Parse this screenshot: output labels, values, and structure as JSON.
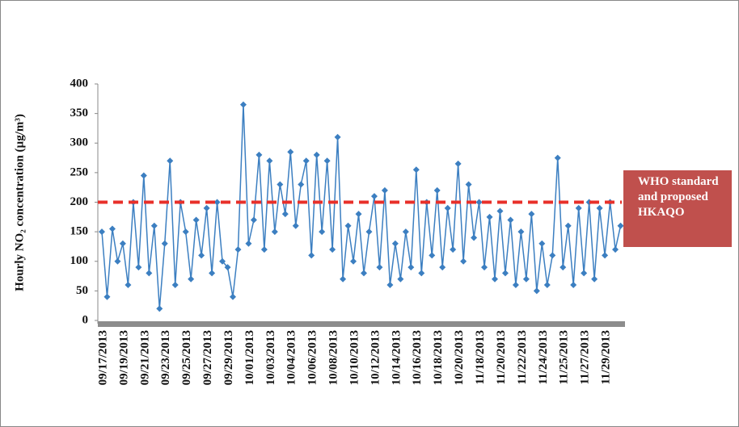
{
  "chart_data": {
    "type": "line",
    "y_label": "Hourly NO₂ concentration (µg/m³)",
    "categories": [
      "09/17/2013",
      null,
      null,
      null,
      "09/19/2013",
      null,
      null,
      null,
      "09/21/2013",
      null,
      null,
      null,
      "09/23/2013",
      null,
      null,
      null,
      "09/25/2013",
      null,
      null,
      null,
      "09/27/2013",
      null,
      null,
      null,
      "09/29/2013",
      null,
      null,
      null,
      "10/01/2013",
      null,
      null,
      null,
      "10/03/2013",
      null,
      null,
      null,
      "10/04/2013",
      null,
      null,
      null,
      "10/06/2013",
      null,
      null,
      null,
      "10/08/2013",
      null,
      null,
      null,
      "10/10/2013",
      null,
      null,
      null,
      "10/12/2013",
      null,
      null,
      null,
      "10/14/2013",
      null,
      null,
      null,
      "10/16/2013",
      null,
      null,
      null,
      "10/18/2013",
      null,
      null,
      null,
      "10/20/2013",
      null,
      null,
      null,
      "11/18/2013",
      null,
      null,
      null,
      "11/20/2013",
      null,
      null,
      null,
      "11/22/2013",
      null,
      null,
      null,
      "11/24/2013",
      null,
      null,
      null,
      "11/25/2013",
      null,
      null,
      null,
      "11/27/2013",
      null,
      null,
      null,
      "11/29/2013",
      null,
      null,
      null
    ],
    "values": [
      150,
      40,
      155,
      100,
      130,
      60,
      200,
      90,
      245,
      80,
      160,
      20,
      130,
      270,
      60,
      200,
      150,
      70,
      170,
      110,
      190,
      80,
      200,
      100,
      90,
      40,
      120,
      365,
      130,
      170,
      280,
      120,
      270,
      150,
      230,
      180,
      285,
      160,
      230,
      270,
      110,
      280,
      150,
      270,
      120,
      310,
      70,
      160,
      100,
      180,
      80,
      150,
      210,
      90,
      220,
      60,
      130,
      70,
      150,
      90,
      255,
      80,
      200,
      110,
      220,
      90,
      190,
      120,
      265,
      100,
      230,
      140,
      200,
      90,
      175,
      70,
      185,
      80,
      170,
      60,
      150,
      70,
      180,
      50,
      130,
      60,
      110,
      275,
      90,
      160,
      60,
      190,
      80,
      200,
      70,
      190,
      110,
      200,
      120,
      160
    ],
    "color": "#3c7fc1",
    "ylim": [
      0,
      400
    ],
    "yticks": [
      0,
      50,
      100,
      150,
      200,
      250,
      300,
      350,
      400
    ],
    "reference_line": {
      "value": 200,
      "label": "WHO standard and proposed HKAQO",
      "color": "#e8302a"
    }
  }
}
